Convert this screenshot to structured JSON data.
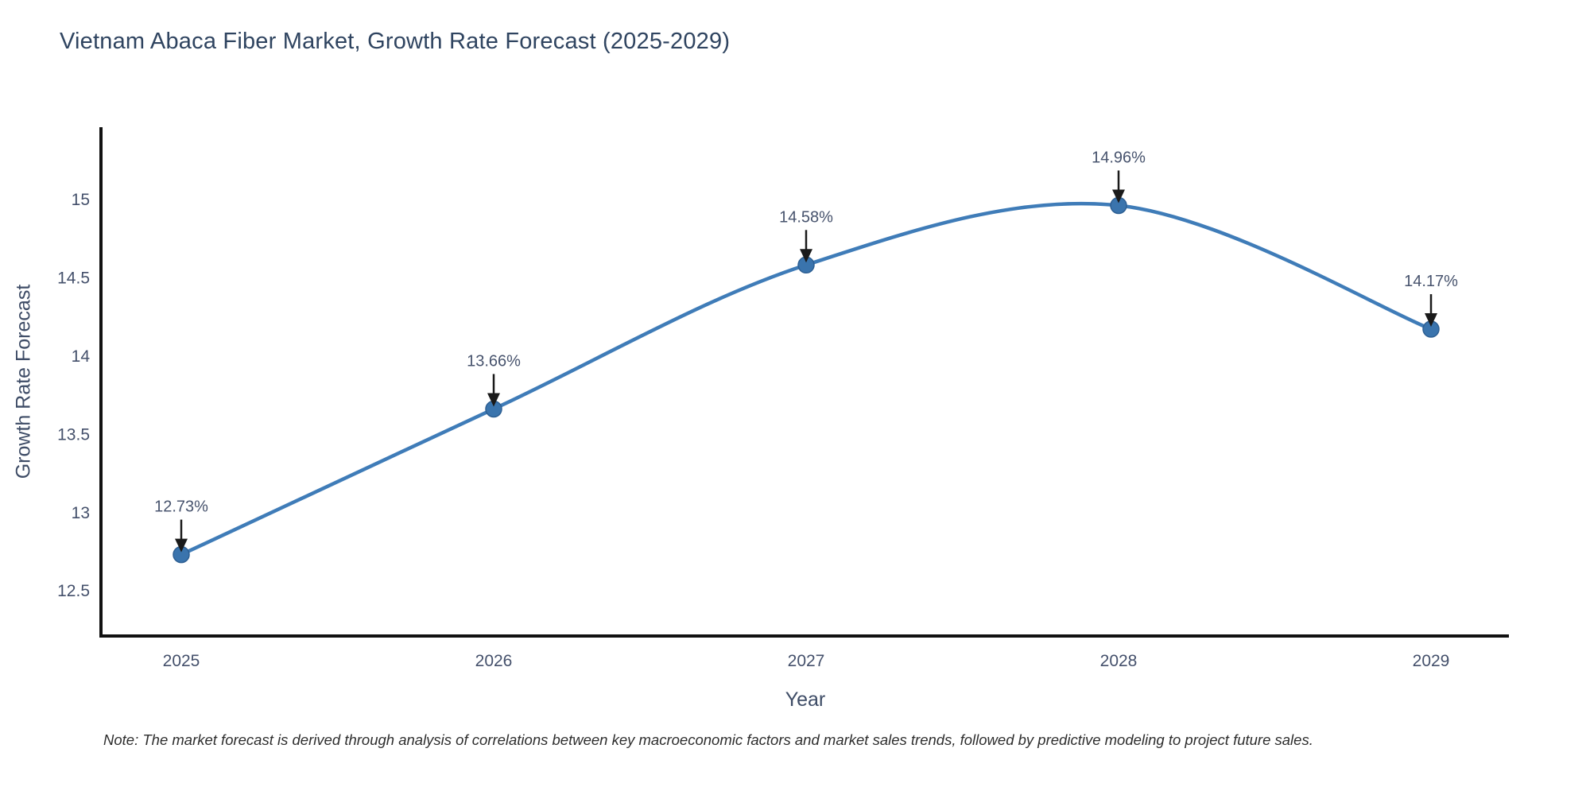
{
  "chart_data": {
    "type": "line",
    "title": "Vietnam Abaca Fiber Market, Growth Rate Forecast (2025-2029)",
    "xlabel": "Year",
    "ylabel": "Growth Rate Forecast",
    "categories": [
      "2025",
      "2026",
      "2027",
      "2028",
      "2029"
    ],
    "series": [
      {
        "name": "Growth Rate Forecast",
        "values": [
          12.73,
          13.66,
          14.58,
          14.96,
          14.17
        ],
        "point_labels": [
          "12.73%",
          "13.66%",
          "14.58%",
          "14.96%",
          "14.17%"
        ]
      }
    ],
    "yticks": [
      12.5,
      13,
      13.5,
      14,
      14.5,
      15
    ],
    "ylim": [
      12.21,
      15.46
    ],
    "grid": false,
    "legend_position": "none",
    "line_smoothing": "spline",
    "annotations_style": "value label with down arrow to marker",
    "colors": {
      "line": "#3f7cb8",
      "marker_fill": "#3a74ad",
      "marker_edge": "#2d5f93",
      "axis_spine": "#111111",
      "tick_label": "#44506b",
      "annotation_text": "#47536d",
      "arrow": "#1a1a1a",
      "title": "#2f4460"
    },
    "note": "Note: The market forecast is derived through analysis of correlations between key macroeconomic factors and market sales trends, followed by predictive modeling to project future sales."
  }
}
